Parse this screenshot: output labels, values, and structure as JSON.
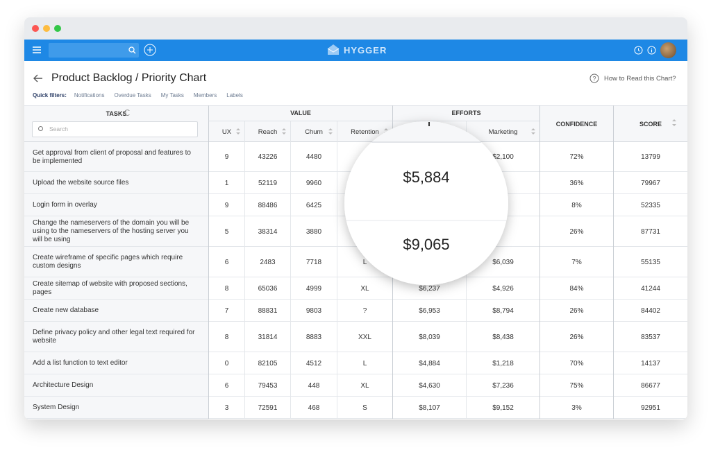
{
  "nav": {
    "brand": "HYGGER"
  },
  "header": {
    "title": "Product Backlog / Priority Chart",
    "help": "How to Read this Chart?"
  },
  "filters": {
    "label": "Quick filters:",
    "items": [
      "Notifications",
      "Overdue Tasks",
      "My Tasks",
      "Members",
      "Labels"
    ]
  },
  "table": {
    "groups": [
      "TASKS",
      "VALUE",
      "EFFORTS",
      "CONFIDENCE",
      "SCORE"
    ],
    "search_placeholder": "Search",
    "columns": [
      "UX",
      "Reach",
      "Churn",
      "Retention",
      null,
      "Marketing"
    ],
    "rows": [
      [
        "Get approval from client of proposal and features to be implemented",
        "9",
        "43226",
        "4480",
        null,
        null,
        "$2,100",
        "72%",
        "13799"
      ],
      [
        "Upload the website source files",
        "1",
        "52119",
        "9960",
        null,
        null,
        null,
        "36%",
        "79967"
      ],
      [
        "Login form in overlay",
        "9",
        "88486",
        "6425",
        null,
        null,
        null,
        "8%",
        "52335"
      ],
      [
        "Change the nameservers of the domain you will be using to the nameservers of the hosting server you will be using",
        "5",
        "38314",
        "3880",
        null,
        null,
        null,
        "26%",
        "87731"
      ],
      [
        "Create wireframe of specific pages which require custom designs",
        "6",
        "2483",
        "7718",
        "L",
        null,
        "$6,039",
        "7%",
        "55135"
      ],
      [
        "Create sitemap of website with proposed sections, pages",
        "8",
        "65036",
        "4999",
        "XL",
        "$6,237",
        "$4,926",
        "84%",
        "41244"
      ],
      [
        "Create new database",
        "7",
        "88831",
        "9803",
        "?",
        "$6,953",
        "$8,794",
        "26%",
        "84402"
      ],
      [
        "Define privacy policy and other legal text required for website",
        "8",
        "31814",
        "8883",
        "XXL",
        "$8,039",
        "$8,438",
        "26%",
        "83537"
      ],
      [
        "Add a list function to text editor",
        "0",
        "82105",
        "4512",
        "L",
        "$4,884",
        "$1,218",
        "70%",
        "14137"
      ],
      [
        "Architecture Design",
        "6",
        "79453",
        "448",
        "XL",
        "$4,630",
        "$7,236",
        "75%",
        "86677"
      ],
      [
        "System Design",
        "3",
        "72591",
        "468",
        "S",
        "$8,107",
        "$9,152",
        "3%",
        "92951"
      ]
    ]
  },
  "magnifier": {
    "values": [
      "$5,884",
      "$9,065"
    ]
  }
}
